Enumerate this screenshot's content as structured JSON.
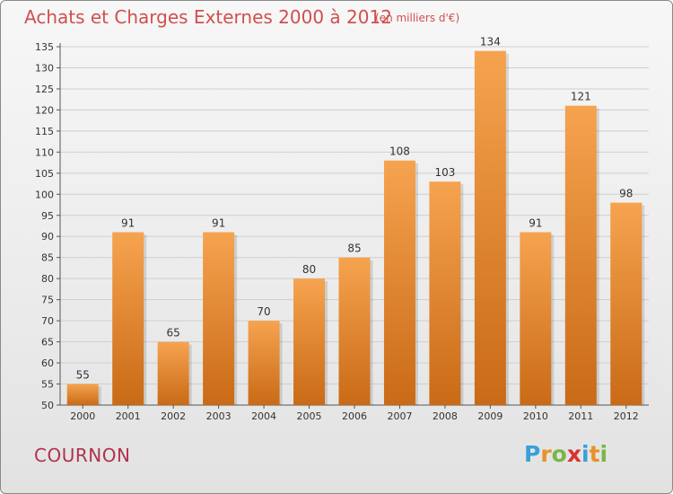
{
  "title": "Achats et Charges Externes 2000 à 2012",
  "subtitle": "(en milliers d'€)",
  "city": "COURNON",
  "logo": {
    "text": "Proxiti",
    "letters": [
      {
        "ch": "P",
        "color": "#3aa0d8"
      },
      {
        "ch": "r",
        "color": "#e8912a"
      },
      {
        "ch": "o",
        "color": "#7ab648"
      },
      {
        "ch": "x",
        "color": "#d9322e"
      },
      {
        "ch": "i",
        "color": "#3aa0d8"
      },
      {
        "ch": "t",
        "color": "#e8912a"
      },
      {
        "ch": "i",
        "color": "#7ab648"
      }
    ]
  },
  "chart_data": {
    "type": "bar",
    "title": "Achats et Charges Externes 2000 à 2012",
    "subtitle": "(en milliers d'€)",
    "categories": [
      "2000",
      "2001",
      "2002",
      "2003",
      "2004",
      "2005",
      "2006",
      "2007",
      "2008",
      "2009",
      "2010",
      "2011",
      "2012"
    ],
    "values": [
      55,
      91,
      65,
      91,
      70,
      80,
      85,
      108,
      103,
      134,
      91,
      121,
      98
    ],
    "ylim": [
      50,
      135
    ],
    "yticks": [
      50,
      55,
      60,
      65,
      70,
      75,
      80,
      85,
      90,
      95,
      100,
      105,
      110,
      115,
      120,
      125,
      130,
      135
    ],
    "grid": true,
    "bar_color_top": "#f6a34f",
    "bar_color_bottom": "#c96a16",
    "xlabel": "",
    "ylabel": ""
  }
}
